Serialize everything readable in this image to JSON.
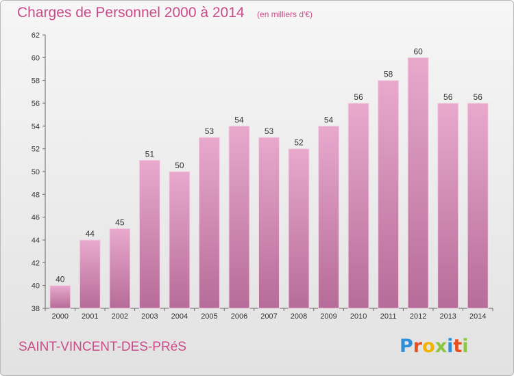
{
  "chart_data": {
    "type": "bar",
    "title": "Charges de Personnel 2000 à 2014",
    "subtitle": "(en milliers d'€)",
    "categories": [
      "2000",
      "2001",
      "2002",
      "2003",
      "2004",
      "2005",
      "2006",
      "2007",
      "2008",
      "2009",
      "2010",
      "2011",
      "2012",
      "2013",
      "2014"
    ],
    "values": [
      40,
      44,
      45,
      51,
      50,
      53,
      54,
      53,
      52,
      54,
      56,
      58,
      60,
      56,
      56
    ],
    "ylim": [
      38,
      62
    ],
    "yticks": [
      38,
      40,
      42,
      44,
      46,
      48,
      50,
      52,
      54,
      56,
      58,
      60,
      62
    ],
    "grid": false,
    "bar_color": "#d987b5",
    "accent_color": "#cc4b8a"
  },
  "footer": {
    "town": "SAINT-VINCENT-DES-PRéS",
    "logo_letters": [
      "P",
      "r",
      "o",
      "x",
      "i",
      "t",
      "i"
    ],
    "logo_colors": [
      "#2e8fd6",
      "#e8501e",
      "#f0b400",
      "#8cc63f",
      "#2e8fd6",
      "#e8501e",
      "#8cc63f"
    ]
  }
}
